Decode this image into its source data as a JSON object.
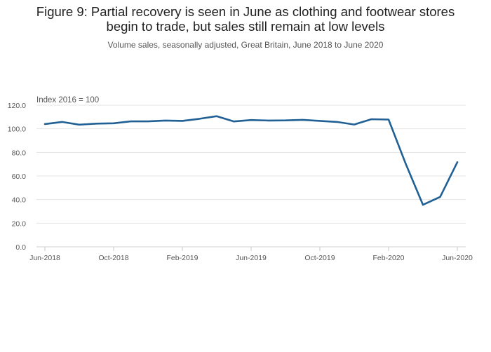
{
  "header": {
    "title_line1": "Figure 9: Partial recovery is seen in June as clothing and footwear stores",
    "title_line2": "begin to trade, but sales still remain at low levels",
    "subtitle": "Volume sales, seasonally adjusted, Great Britain, June 2018 to June 2020"
  },
  "chart_data": {
    "type": "line",
    "title": "Figure 9: Partial recovery is seen in June as clothing and footwear stores begin to trade, but sales still remain at low levels",
    "subtitle": "Volume sales, seasonally adjusted, Great Britain, June 2018 to June 2020",
    "ylabel": "Index 2016 = 100",
    "xlabel": "",
    "ylim": [
      0,
      120
    ],
    "yticks": [
      "0.0",
      "20.0",
      "40.0",
      "60.0",
      "80.0",
      "100.0",
      "120.0"
    ],
    "yticks_values": [
      0,
      20,
      40,
      60,
      80,
      100,
      120
    ],
    "x": [
      "Jun-2018",
      "Jul-2018",
      "Aug-2018",
      "Sep-2018",
      "Oct-2018",
      "Nov-2018",
      "Dec-2018",
      "Jan-2019",
      "Feb-2019",
      "Mar-2019",
      "Apr-2019",
      "May-2019",
      "Jun-2019",
      "Jul-2019",
      "Aug-2019",
      "Sep-2019",
      "Oct-2019",
      "Nov-2019",
      "Dec-2019",
      "Jan-2020",
      "Feb-2020",
      "Mar-2020",
      "Apr-2020",
      "May-2020",
      "Jun-2020"
    ],
    "xtick_labels": [
      "Jun-2018",
      "Oct-2018",
      "Feb-2019",
      "Jun-2019",
      "Oct-2019",
      "Feb-2020",
      "Jun-2020"
    ],
    "xtick_indices": [
      0,
      4,
      8,
      12,
      16,
      20,
      24
    ],
    "grid": true,
    "legend": "none",
    "series": [
      {
        "color": "#206095",
        "values": [
          104.0,
          105.8,
          103.5,
          104.4,
          104.7,
          106.3,
          106.3,
          107.0,
          106.7,
          108.5,
          110.7,
          106.2,
          107.4,
          107.0,
          107.1,
          107.6,
          106.7,
          105.8,
          103.6,
          108.1,
          107.8,
          70.2,
          35.6,
          42.3,
          71.7
        ]
      }
    ]
  }
}
